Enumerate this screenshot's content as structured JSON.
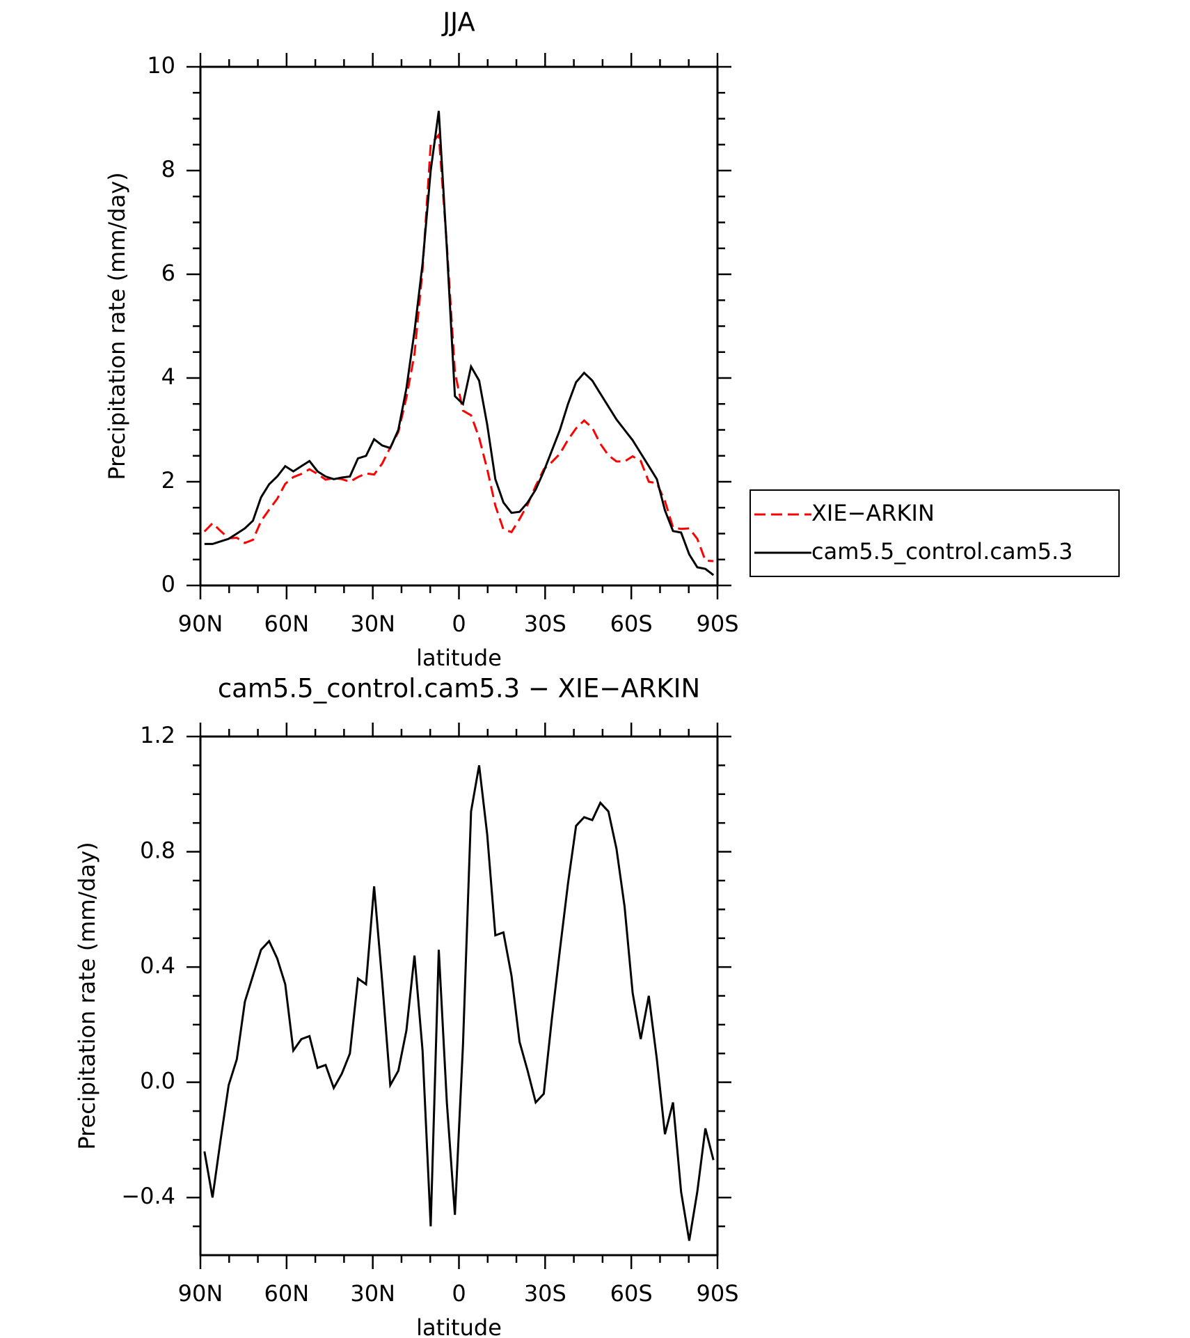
{
  "chart_data": [
    {
      "type": "line",
      "title": "JJA",
      "xlabel": "latitude",
      "ylabel": "Precipitation rate (mm/day)",
      "x": [
        88.59,
        85.78,
        82.97,
        80.16,
        77.34,
        74.53,
        71.72,
        68.91,
        66.09,
        63.28,
        60.47,
        57.66,
        54.84,
        52.03,
        49.22,
        46.41,
        43.59,
        40.78,
        37.97,
        35.16,
        32.34,
        29.53,
        26.72,
        23.91,
        21.09,
        18.28,
        15.47,
        12.66,
        9.84,
        7.03,
        4.22,
        1.41,
        -1.41,
        -4.22,
        -7.03,
        -9.84,
        -12.66,
        -15.47,
        -18.28,
        -21.09,
        -23.91,
        -26.72,
        -29.53,
        -32.34,
        -35.16,
        -37.97,
        -40.78,
        -43.59,
        -46.41,
        -49.22,
        -52.03,
        -54.84,
        -57.66,
        -60.47,
        -63.28,
        -66.09,
        -68.91,
        -71.72,
        -74.53,
        -77.34,
        -80.16,
        -82.97,
        -85.78,
        -88.59
      ],
      "series": [
        {
          "name": "XIE−ARKIN",
          "color": "#ff0000",
          "style": "dashed",
          "values": [
            1.04,
            1.2,
            1.05,
            0.91,
            0.92,
            0.82,
            0.88,
            1.24,
            1.46,
            1.67,
            1.96,
            2.09,
            2.15,
            2.24,
            2.15,
            2.04,
            2.07,
            2.05,
            2.0,
            2.09,
            2.16,
            2.14,
            2.35,
            2.66,
            2.96,
            3.62,
            4.46,
            6.09,
            8.5,
            8.69,
            6.57,
            4.11,
            3.37,
            3.28,
            2.85,
            2.24,
            1.54,
            1.08,
            1.03,
            1.28,
            1.56,
            1.92,
            2.24,
            2.38,
            2.54,
            2.81,
            3.03,
            3.18,
            3.04,
            2.73,
            2.51,
            2.39,
            2.39,
            2.49,
            2.4,
            2.0,
            1.97,
            1.63,
            1.12,
            1.09,
            1.1,
            0.9,
            0.48,
            0.47
          ]
        },
        {
          "name": "cam5.5_control.cam5.3",
          "color": "#000000",
          "style": "solid",
          "values": [
            0.8,
            0.8,
            0.85,
            0.9,
            1.0,
            1.1,
            1.25,
            1.7,
            1.95,
            2.1,
            2.3,
            2.2,
            2.3,
            2.4,
            2.2,
            2.1,
            2.05,
            2.08,
            2.1,
            2.45,
            2.5,
            2.82,
            2.7,
            2.65,
            3.0,
            3.8,
            4.9,
            6.2,
            8.0,
            9.15,
            6.5,
            3.65,
            3.5,
            4.22,
            3.95,
            3.1,
            2.05,
            1.6,
            1.4,
            1.42,
            1.6,
            1.85,
            2.2,
            2.6,
            3.0,
            3.5,
            3.92,
            4.1,
            3.95,
            3.7,
            3.45,
            3.2,
            3.0,
            2.8,
            2.55,
            2.3,
            2.05,
            1.45,
            1.05,
            1.02,
            0.6,
            0.35,
            0.32,
            0.2
          ]
        }
      ],
      "xlim": [
        90,
        -90
      ],
      "xticks": [
        {
          "value": 90,
          "label": "90N"
        },
        {
          "value": 60,
          "label": "60N"
        },
        {
          "value": 30,
          "label": "30N"
        },
        0,
        {
          "value": -30,
          "label": "30S"
        },
        {
          "value": -60,
          "label": "60S"
        },
        {
          "value": -90,
          "label": "90S"
        }
      ],
      "xminor": [
        80,
        70,
        50,
        40,
        20,
        10,
        -10,
        -20,
        -40,
        -50,
        -70,
        -80
      ],
      "ylim": [
        0,
        10
      ],
      "yticks": [
        0,
        2,
        4,
        6,
        8,
        10
      ],
      "yminor": [
        0.5,
        1,
        1.5,
        2.5,
        3,
        3.5,
        4.5,
        5,
        5.5,
        6.5,
        7,
        7.5,
        8.5,
        9,
        9.5
      ],
      "legend": "outside-right"
    },
    {
      "type": "line",
      "title": "cam5.5_control.cam5.3 − XIE−ARKIN",
      "xlabel": "latitude",
      "ylabel": "Precipitation rate (mm/day)",
      "x": [
        88.59,
        85.78,
        82.97,
        80.16,
        77.34,
        74.53,
        71.72,
        68.91,
        66.09,
        63.28,
        60.47,
        57.66,
        54.84,
        52.03,
        49.22,
        46.41,
        43.59,
        40.78,
        37.97,
        35.16,
        32.34,
        29.53,
        26.72,
        23.91,
        21.09,
        18.28,
        15.47,
        12.66,
        9.84,
        7.03,
        4.22,
        1.41,
        -1.41,
        -4.22,
        -7.03,
        -9.84,
        -12.66,
        -15.47,
        -18.28,
        -21.09,
        -23.91,
        -26.72,
        -29.53,
        -32.34,
        -35.16,
        -37.97,
        -40.78,
        -43.59,
        -46.41,
        -49.22,
        -52.03,
        -54.84,
        -57.66,
        -60.47,
        -63.28,
        -66.09,
        -68.91,
        -71.72,
        -74.53,
        -77.34,
        -80.16,
        -82.97,
        -85.78,
        -88.59
      ],
      "values": [
        -0.24,
        -0.4,
        -0.2,
        -0.01,
        0.08,
        0.28,
        0.37,
        0.46,
        0.49,
        0.43,
        0.34,
        0.11,
        0.15,
        0.16,
        0.05,
        0.06,
        -0.02,
        0.03,
        0.1,
        0.36,
        0.34,
        0.68,
        0.35,
        -0.01,
        0.04,
        0.18,
        0.44,
        0.11,
        -0.5,
        0.46,
        -0.07,
        -0.46,
        0.13,
        0.94,
        1.1,
        0.86,
        0.51,
        0.52,
        0.37,
        0.14,
        0.04,
        -0.07,
        -0.04,
        0.22,
        0.46,
        0.69,
        0.89,
        0.92,
        0.91,
        0.97,
        0.94,
        0.81,
        0.61,
        0.31,
        0.15,
        0.3,
        0.08,
        -0.18,
        -0.07,
        -0.38,
        -0.55,
        -0.38,
        -0.16,
        -0.27
      ],
      "color": "#000000",
      "xlim": [
        90,
        -90
      ],
      "xticks": [
        {
          "value": 90,
          "label": "90N"
        },
        {
          "value": 60,
          "label": "60N"
        },
        {
          "value": 30,
          "label": "30N"
        },
        0,
        {
          "value": -30,
          "label": "30S"
        },
        {
          "value": -60,
          "label": "60S"
        },
        {
          "value": -90,
          "label": "90S"
        }
      ],
      "xminor": [
        80,
        70,
        50,
        40,
        20,
        10,
        -10,
        -20,
        -40,
        -50,
        -70,
        -80
      ],
      "ylim": [
        -0.6,
        1.2
      ],
      "yticks": [
        {
          "value": -0.4,
          "label": "−0.4"
        },
        {
          "value": 0,
          "label": "0.0"
        },
        0.4,
        0.8,
        1.2
      ],
      "yminor": [
        -0.5,
        -0.3,
        -0.2,
        -0.1,
        0.1,
        0.2,
        0.3,
        0.5,
        0.6,
        0.7,
        0.9,
        1.0,
        1.1
      ]
    }
  ]
}
